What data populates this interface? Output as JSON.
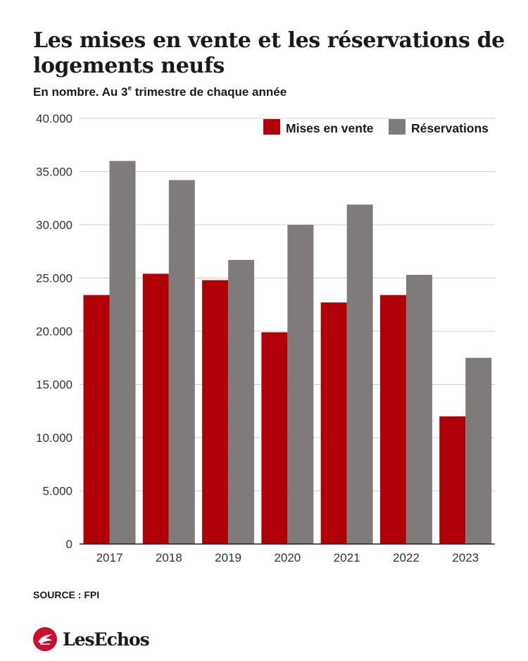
{
  "header": {
    "title": "Les  mises en vente et les réservations de logements neufs",
    "subtitle_main": "En nombre. Au 3",
    "subtitle_sup": "e",
    "subtitle_rest": " trimestre de chaque année"
  },
  "colors": {
    "mises_en_vente": "#b00008",
    "reservations": "#7f7b7a",
    "grid": "#d0d0d0",
    "axis": "#222222"
  },
  "chart_data": {
    "type": "bar",
    "categories": [
      "2017",
      "2018",
      "2019",
      "2020",
      "2021",
      "2022",
      "2023"
    ],
    "series": [
      {
        "name": "Mises en vente",
        "values": [
          23400,
          25400,
          24800,
          19900,
          22700,
          23400,
          12000
        ]
      },
      {
        "name": "Réservations",
        "values": [
          36000,
          34200,
          26700,
          30000,
          31900,
          25300,
          17500
        ]
      }
    ],
    "y_ticks": [
      "0",
      "5.000",
      "10.000",
      "15.000",
      "20.000",
      "25.000",
      "30.000",
      "35.000",
      "40.000"
    ],
    "ylim": [
      0,
      40000
    ],
    "grid": true,
    "legend_position": "top-right"
  },
  "footer": {
    "source": "SOURCE : FPI",
    "brand": "LesEchos",
    "logo_icon": "les-echos-logo-icon"
  }
}
